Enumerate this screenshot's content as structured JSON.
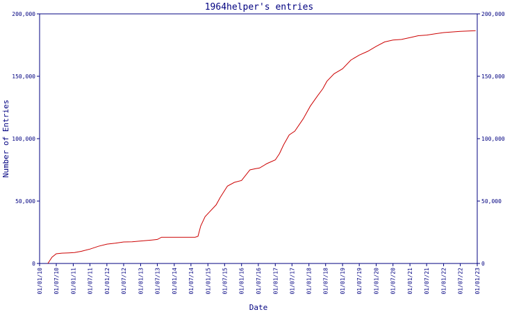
{
  "chart_data": {
    "type": "line",
    "title": "1964helper's entries",
    "xlabel": "Date",
    "ylabel": "Number of Entries",
    "xlim": [
      "2010-01-01",
      "2023-01-01"
    ],
    "ylim": [
      0,
      200000
    ],
    "y_ticks": [
      0,
      50000,
      100000,
      150000,
      200000
    ],
    "y_tick_labels": [
      "0",
      "50,000",
      "100,000",
      "150,000",
      "200,000"
    ],
    "x_ticks": [
      "2010-01-01",
      "2010-07-01",
      "2011-01-01",
      "2011-07-01",
      "2012-01-01",
      "2012-07-01",
      "2013-01-01",
      "2013-07-01",
      "2014-01-01",
      "2014-07-01",
      "2015-01-01",
      "2015-07-01",
      "2016-01-01",
      "2016-07-01",
      "2017-01-01",
      "2017-07-01",
      "2018-01-01",
      "2018-07-01",
      "2019-01-01",
      "2019-07-01",
      "2020-01-01",
      "2020-07-01",
      "2021-01-01",
      "2021-07-01",
      "2022-01-01",
      "2022-07-01",
      "2023-01-01"
    ],
    "x_tick_labels": [
      "01/01/10",
      "01/07/10",
      "01/01/11",
      "01/07/11",
      "01/01/12",
      "01/07/12",
      "01/01/13",
      "01/07/13",
      "01/01/14",
      "01/07/14",
      "01/01/15",
      "01/07/15",
      "01/01/16",
      "01/07/16",
      "01/01/17",
      "01/07/17",
      "01/01/18",
      "01/07/18",
      "01/01/19",
      "01/07/19",
      "01/01/20",
      "01/07/20",
      "01/01/21",
      "01/07/21",
      "01/01/22",
      "01/07/22",
      "01/01/23"
    ],
    "grid": false,
    "colors": {
      "axes": "#000080",
      "line": "#cc0000"
    },
    "series": [
      {
        "x": [
          "2010-04-01",
          "2010-05-15",
          "2010-07-01",
          "2010-09-01",
          "2010-11-15",
          "2011-01-15",
          "2011-04-01",
          "2011-07-01",
          "2011-10-01",
          "2012-01-01",
          "2012-04-01",
          "2012-07-01",
          "2012-10-01",
          "2013-01-01",
          "2013-05-01",
          "2013-07-01",
          "2013-08-15",
          "2014-01-01",
          "2014-05-01",
          "2014-08-15",
          "2014-09-15",
          "2014-10-15",
          "2014-12-01",
          "2015-01-15",
          "2015-04-01",
          "2015-05-15",
          "2015-08-01",
          "2015-10-15",
          "2016-01-01",
          "2016-04-01",
          "2016-06-01",
          "2016-07-15",
          "2016-10-01",
          "2017-01-01",
          "2017-02-15",
          "2017-04-01",
          "2017-06-01",
          "2017-08-01",
          "2017-11-01",
          "2018-01-15",
          "2018-04-01",
          "2018-06-01",
          "2018-07-15",
          "2018-10-01",
          "2019-01-01",
          "2019-04-01",
          "2019-07-01",
          "2019-10-01",
          "2020-01-01",
          "2020-04-01",
          "2020-07-01",
          "2020-10-01",
          "2021-01-01",
          "2021-04-01",
          "2021-07-01",
          "2021-10-01",
          "2022-01-01",
          "2022-04-01",
          "2022-07-01",
          "2022-12-15"
        ],
        "y": [
          0,
          5000,
          7800,
          8300,
          8500,
          8700,
          9800,
          11500,
          13800,
          15500,
          16300,
          17200,
          17400,
          18000,
          18800,
          19200,
          21000,
          21000,
          21000,
          21000,
          21800,
          30000,
          37500,
          41000,
          47000,
          53000,
          62000,
          65000,
          66500,
          75000,
          76000,
          76500,
          80000,
          83000,
          88000,
          95000,
          103000,
          106000,
          116000,
          126000,
          134000,
          140000,
          146000,
          152000,
          156000,
          163000,
          167000,
          170000,
          174000,
          177500,
          179000,
          179500,
          181000,
          182500,
          183000,
          184000,
          185000,
          185500,
          186000,
          186500
        ]
      }
    ]
  }
}
